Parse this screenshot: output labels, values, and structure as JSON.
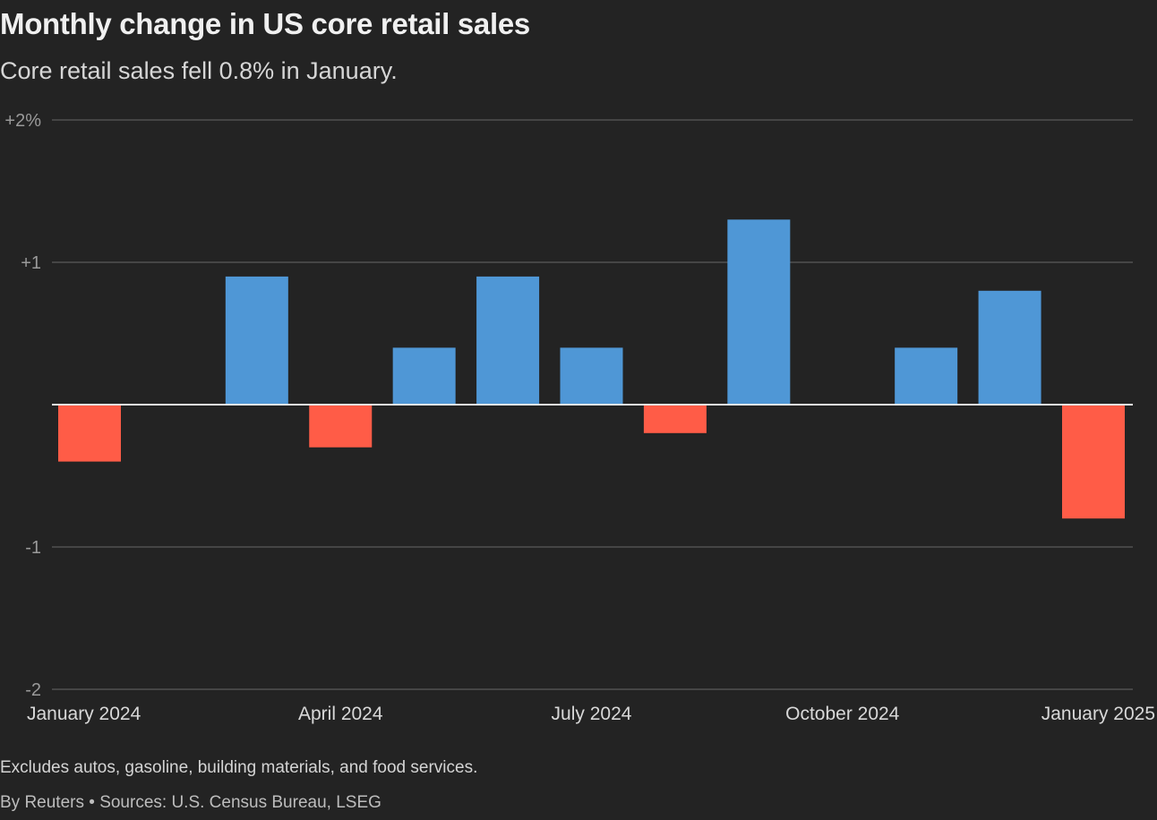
{
  "title": "Monthly change in US core retail sales",
  "subtitle": "Core retail sales fell 0.8% in January.",
  "note": "Excludes autos, gasoline, building materials, and food services.",
  "source": "By Reuters • Sources: U.S. Census Bureau, LSEG",
  "colors": {
    "positive": "#4f97d6",
    "negative": "#ff5c47",
    "background": "#232323",
    "grid": "#5a5a5a"
  },
  "chart_data": {
    "type": "bar",
    "title": "Monthly change in US core retail sales",
    "subtitle": "Core retail sales fell 0.8% in January.",
    "xlabel": "",
    "ylabel": "",
    "ylim": [
      -2,
      2
    ],
    "grid": true,
    "y_ticks": [
      {
        "value": 2,
        "label": "+2%"
      },
      {
        "value": 1,
        "label": "+1"
      },
      {
        "value": -1,
        "label": "-1"
      },
      {
        "value": -2,
        "label": "-2"
      }
    ],
    "x_tick_labels": [
      {
        "index": 0,
        "label": "January 2024"
      },
      {
        "index": 3,
        "label": "April 2024"
      },
      {
        "index": 6,
        "label": "July 2024"
      },
      {
        "index": 9,
        "label": "October 2024"
      },
      {
        "index": 12,
        "label": "January 2025"
      }
    ],
    "categories": [
      "Jan 2024",
      "Feb 2024",
      "Mar 2024",
      "Apr 2024",
      "May 2024",
      "Jun 2024",
      "Jul 2024",
      "Aug 2024",
      "Sep 2024",
      "Oct 2024",
      "Nov 2024",
      "Dec 2024",
      "Jan 2025"
    ],
    "values": [
      -0.4,
      0.0,
      0.9,
      -0.3,
      0.4,
      0.9,
      0.4,
      -0.2,
      1.3,
      0.0,
      0.4,
      0.8,
      -0.8
    ]
  }
}
